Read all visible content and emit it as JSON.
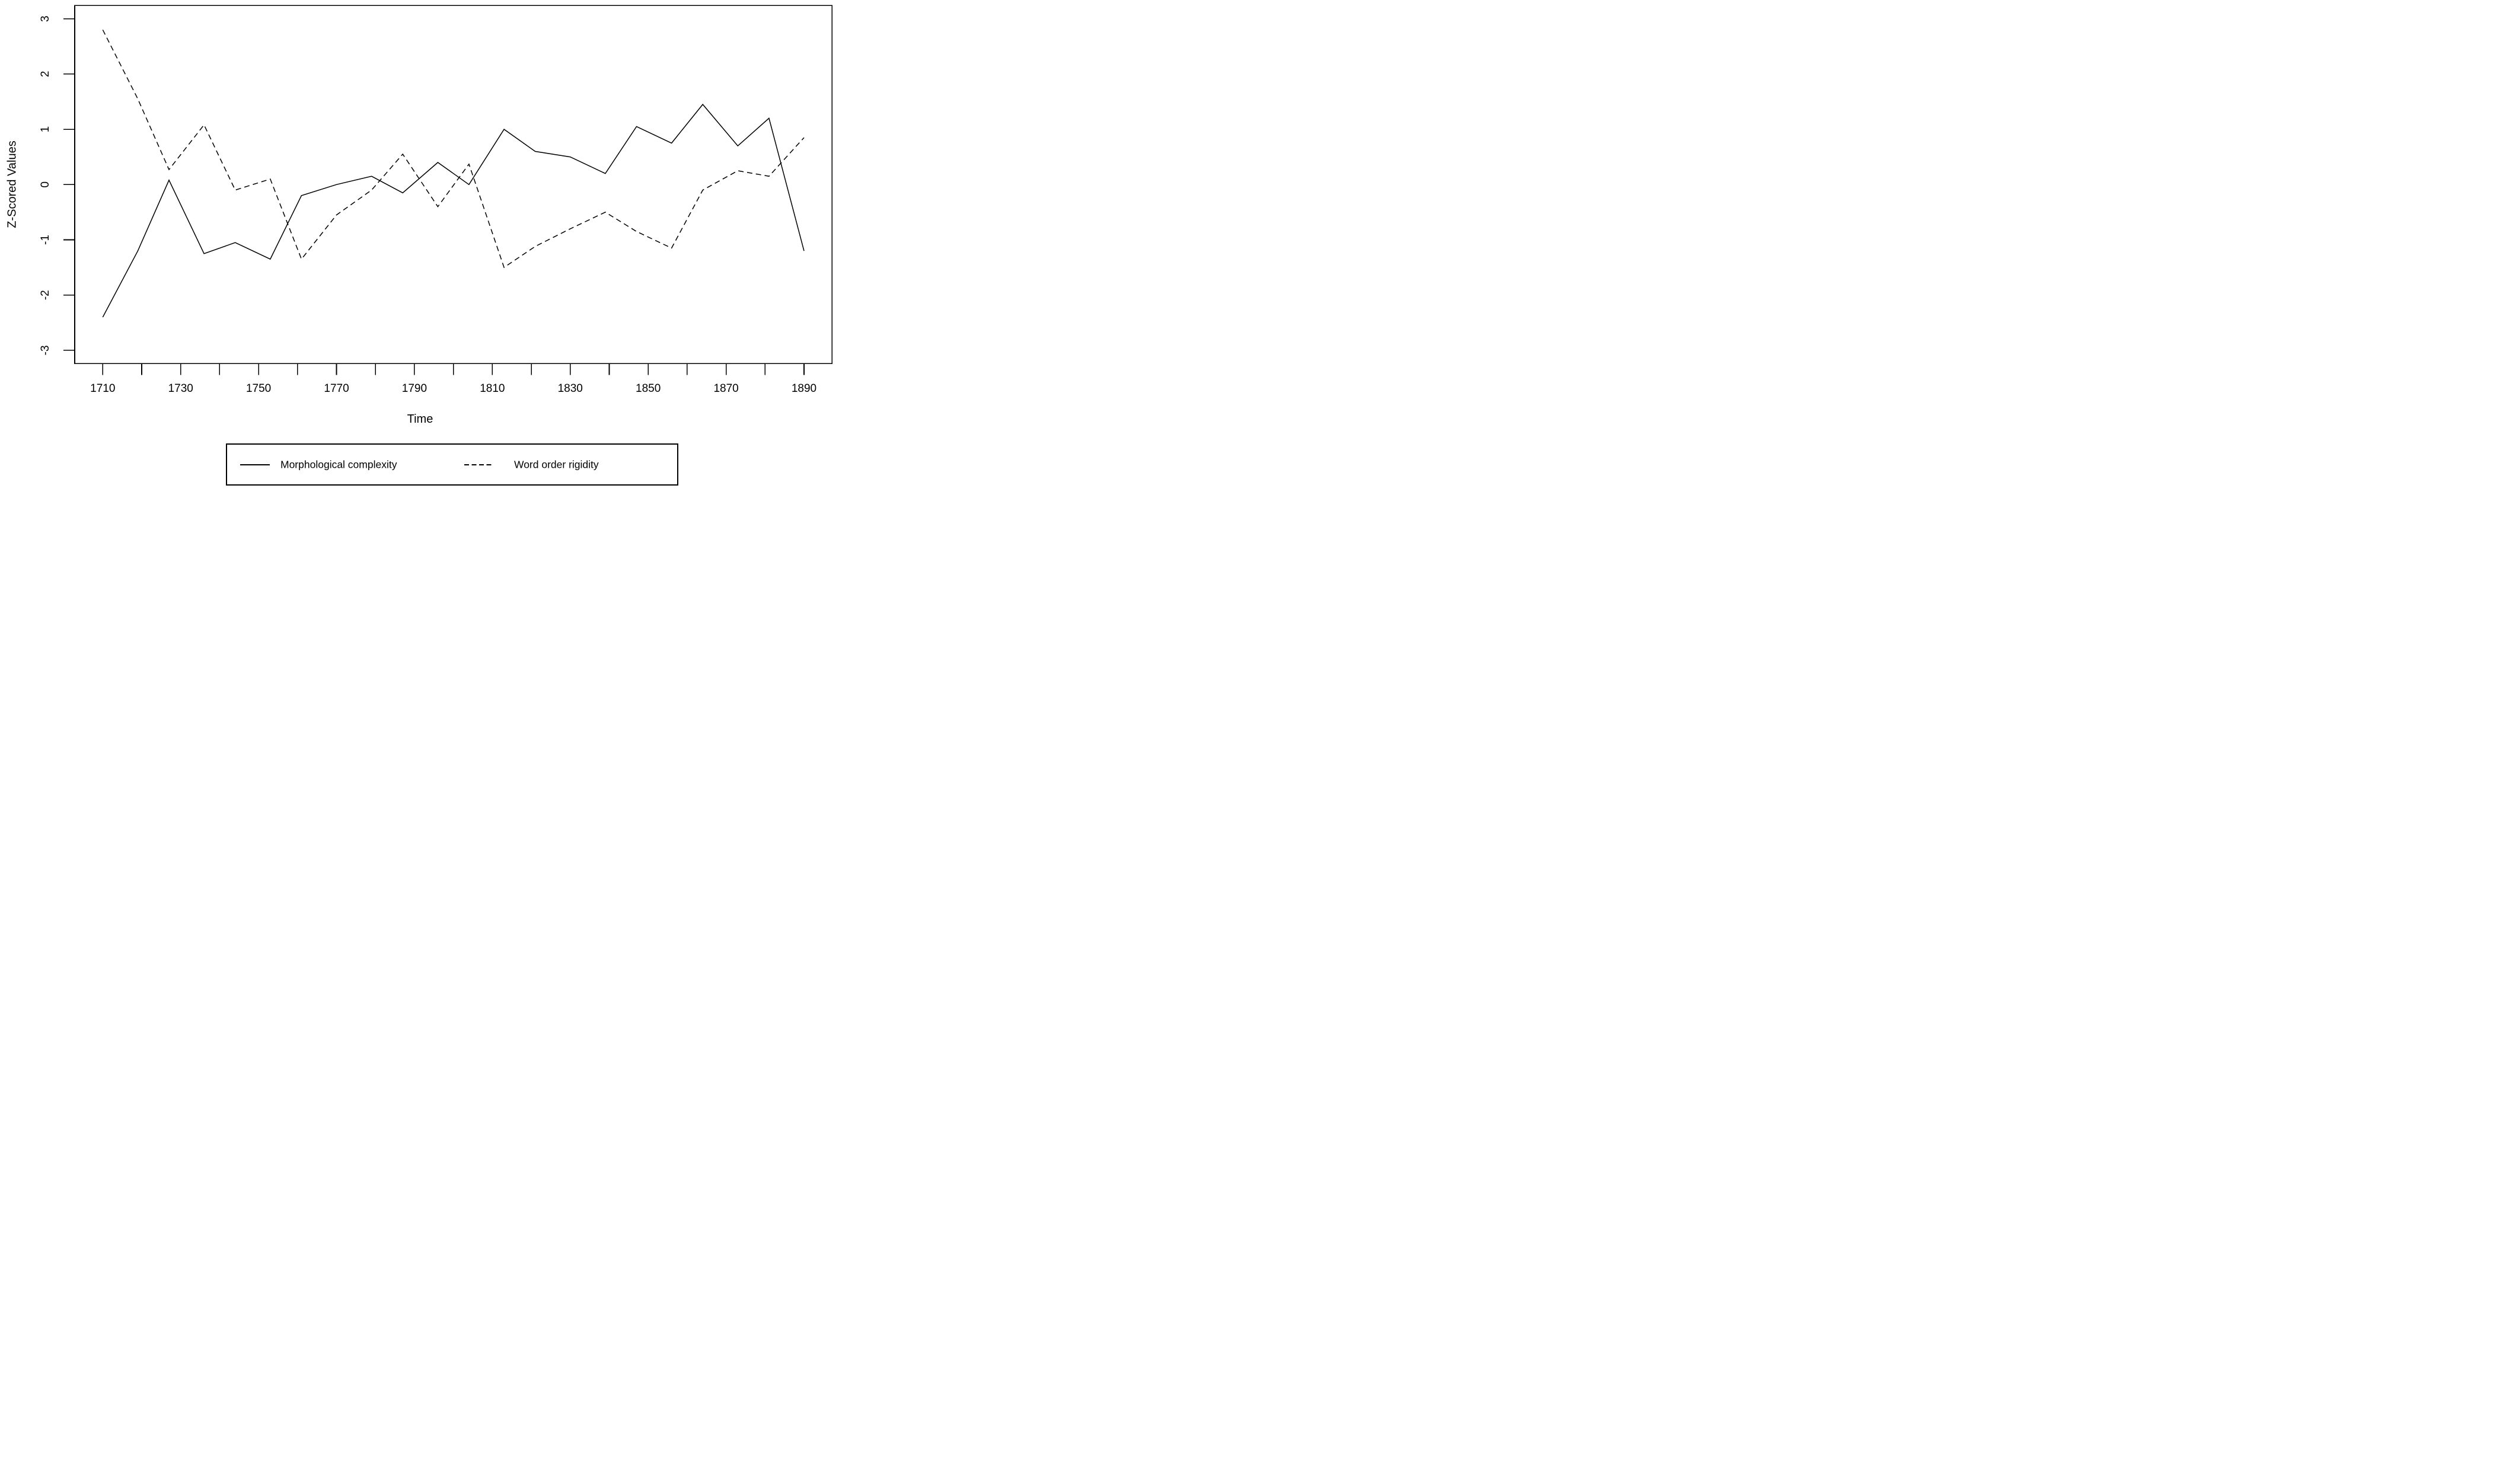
{
  "figure": {
    "background_color": "#ffffff",
    "ink_color": "#000000"
  },
  "x_axis_title": "Time",
  "y_axis_title": "Z-Scored Values",
  "legend": {
    "items": [
      {
        "label": "Morphological complexity",
        "sample": "solid-line"
      },
      {
        "label": "Word order rigidity",
        "sample": "dashed-line"
      }
    ]
  },
  "chart_data": {
    "type": "line",
    "title": "",
    "xlabel": "Time",
    "ylabel": "Z-Scored Values",
    "x": [
      1710,
      1719,
      1727,
      1736,
      1744,
      1753,
      1761,
      1770,
      1779,
      1787,
      1796,
      1804,
      1813,
      1821,
      1830,
      1839,
      1847,
      1856,
      1864,
      1873,
      1881,
      1890
    ],
    "series": [
      {
        "name": "Morphological complexity",
        "line_style": "solid",
        "values": [
          -2.4,
          -1.2,
          0.08,
          -1.25,
          -1.05,
          -1.35,
          -0.2,
          0.0,
          0.15,
          -0.15,
          0.4,
          0.0,
          1.0,
          0.6,
          0.5,
          0.2,
          1.05,
          0.75,
          1.45,
          0.7,
          1.2,
          -1.2
        ]
      },
      {
        "name": "Word order rigidity",
        "line_style": "dashed",
        "values": [
          2.8,
          1.55,
          0.27,
          1.08,
          -0.1,
          0.1,
          -1.35,
          -0.55,
          -0.1,
          0.55,
          -0.4,
          0.37,
          -1.5,
          -1.12,
          -0.8,
          -0.5,
          -0.85,
          -1.15,
          -0.1,
          0.25,
          0.15,
          0.85
        ]
      }
    ],
    "x_axis": {
      "ticks": [
        1710,
        1720,
        1730,
        1740,
        1750,
        1760,
        1770,
        1780,
        1790,
        1800,
        1810,
        1820,
        1830,
        1840,
        1850,
        1860,
        1870,
        1880,
        1890
      ],
      "labeled_ticks": [
        1710,
        1730,
        1750,
        1770,
        1790,
        1810,
        1830,
        1850,
        1870,
        1890
      ],
      "labels": [
        "1710",
        "1730",
        "1750",
        "1770",
        "1790",
        "1810",
        "1830",
        "1850",
        "1870",
        "1890"
      ]
    },
    "y_axis": {
      "ticks": [
        3,
        2,
        1,
        0,
        -1,
        -2,
        -3
      ],
      "labels": [
        "3",
        "2",
        "1",
        "0",
        "-1",
        "-2",
        "-3"
      ]
    },
    "layout": {
      "x_range": [
        1702.8,
        1897.2
      ],
      "y_range": [
        -3.24,
        3.24
      ],
      "grid": false,
      "legend_position": "bottom-center-boxed",
      "line_color": "#000000"
    }
  }
}
